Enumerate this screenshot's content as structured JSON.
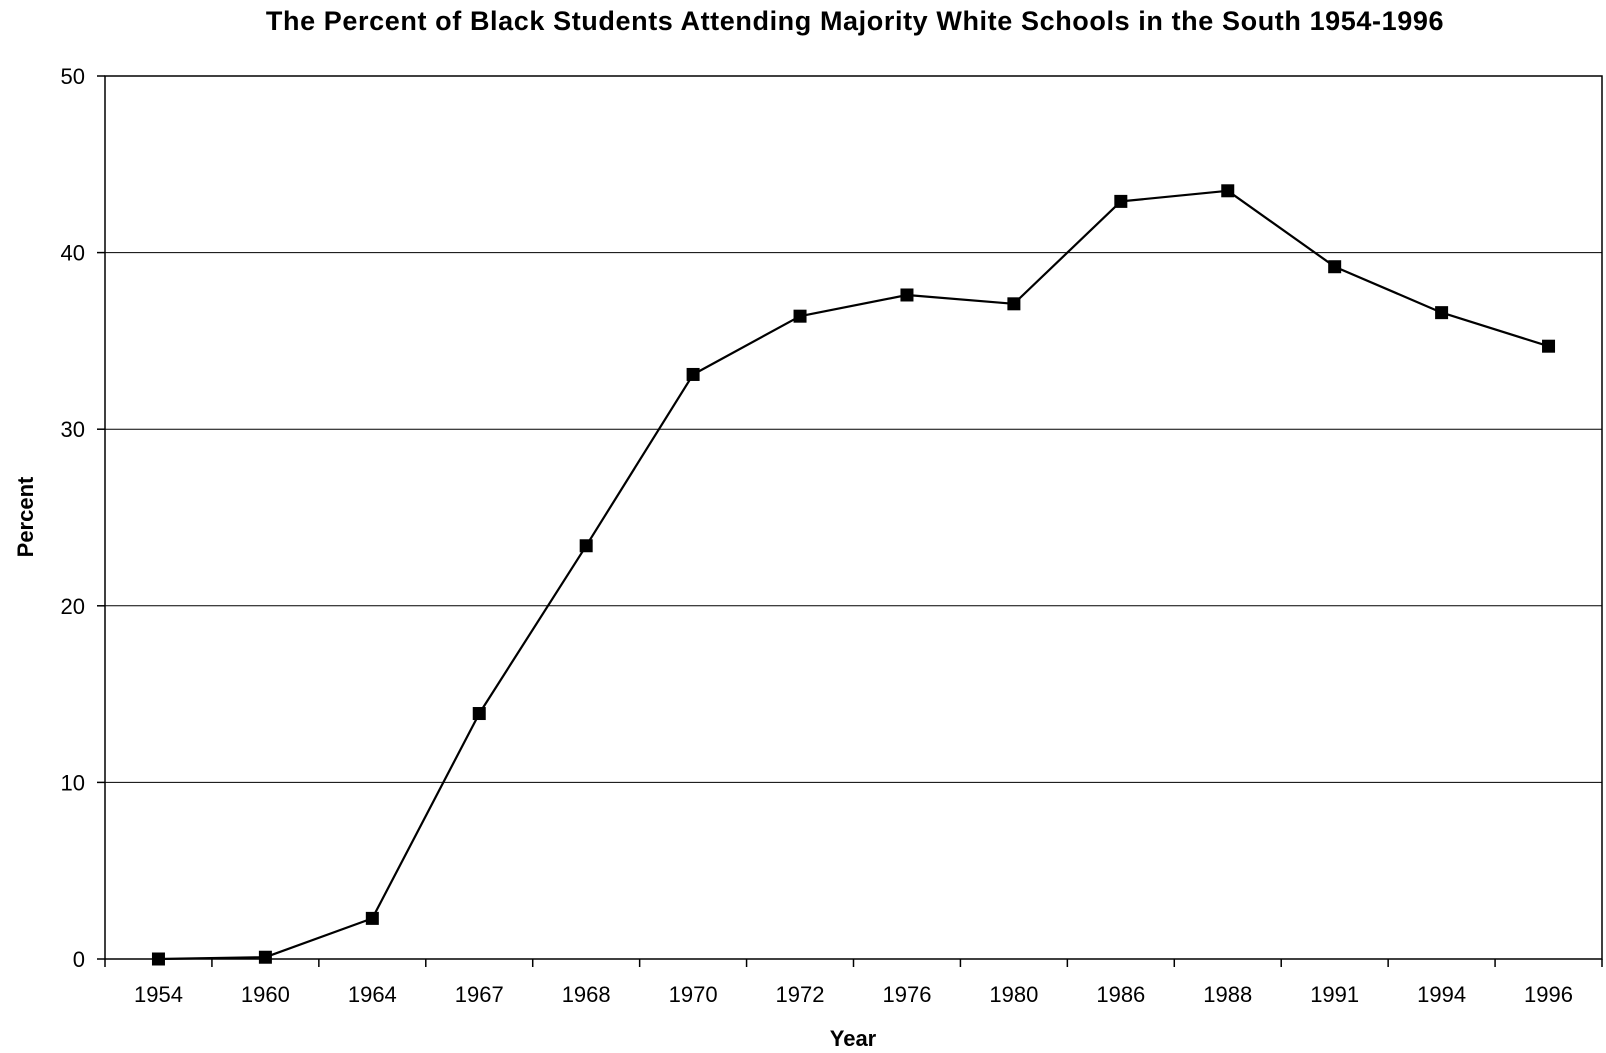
{
  "chart_data": {
    "type": "line",
    "title": "The Percent of Black Students Attending Majority White Schools in the South 1954-1996",
    "xlabel": "Year",
    "ylabel": "Percent",
    "categories": [
      "1954",
      "1960",
      "1964",
      "1967",
      "1968",
      "1970",
      "1972",
      "1976",
      "1980",
      "1986",
      "1988",
      "1991",
      "1994",
      "1996"
    ],
    "series": [
      {
        "values": [
          0.0,
          0.1,
          2.3,
          13.9,
          23.4,
          33.1,
          36.4,
          37.6,
          37.1,
          42.9,
          43.5,
          39.2,
          36.6,
          34.7
        ]
      }
    ],
    "ylim": [
      0,
      50
    ],
    "yticks": [
      0,
      10,
      20,
      30,
      40,
      50
    ],
    "grid": "horizontal",
    "legend": "none",
    "line_color": "#000000",
    "marker": "square"
  }
}
